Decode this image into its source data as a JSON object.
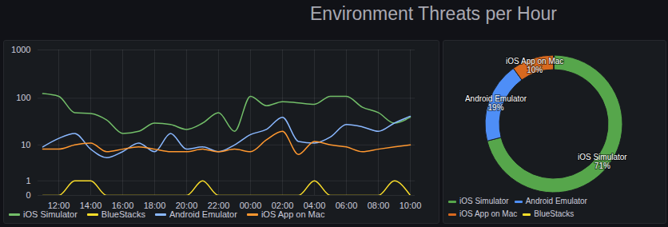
{
  "title": "Environment Threats per Hour",
  "chart_data": [
    {
      "type": "line",
      "categories": [
        null,
        "12:00",
        null,
        "14:00",
        null,
        "16:00",
        null,
        "18:00",
        null,
        "20:00",
        null,
        "22:00",
        null,
        "00:00",
        null,
        "02:00",
        null,
        "04:00",
        null,
        "06:00",
        null,
        "08:00",
        null,
        "10:00"
      ],
      "series": [
        {
          "name": "iOS Simulator",
          "color": "#73bf69",
          "values": [
            125,
            110,
            50,
            48,
            35,
            18,
            20,
            30,
            28,
            22,
            30,
            50,
            20,
            110,
            70,
            85,
            80,
            75,
            110,
            110,
            65,
            50,
            30,
            40
          ]
        },
        {
          "name": "BlueStacks",
          "color": "#fade2a",
          "values": [
            0,
            0,
            1,
            1,
            0,
            0,
            0,
            0,
            0,
            0,
            1,
            0,
            0,
            0,
            0,
            0,
            0,
            1,
            0,
            0,
            0,
            0,
            1,
            0
          ]
        },
        {
          "name": "Android Emulator",
          "color": "#8ab8ff",
          "values": [
            9,
            14,
            18,
            8,
            5,
            7,
            11,
            7,
            18,
            8,
            9,
            7,
            10,
            17,
            22,
            40,
            12,
            11,
            15,
            28,
            25,
            20,
            30,
            42
          ]
        },
        {
          "name": "iOS App on Mac",
          "color": "#ff9830",
          "values": [
            8,
            8,
            10,
            11,
            7,
            8,
            9,
            8,
            7,
            7,
            8,
            7,
            8,
            7,
            13,
            20,
            6,
            12,
            10,
            9,
            7,
            8,
            9,
            10
          ]
        }
      ],
      "ylim": [
        0,
        1000
      ],
      "yticks": [
        0,
        1,
        10,
        100,
        1000
      ],
      "log": "y",
      "grid": true,
      "legend": "bottom"
    },
    {
      "type": "donut",
      "categories": [
        "iOS Simulator",
        "Android Emulator",
        "iOS App on Mac",
        "BlueStacks"
      ],
      "values": [
        71,
        19,
        10,
        0
      ],
      "value_labels": [
        "71%",
        "19%",
        "10%",
        null
      ],
      "colors": [
        "#56a64b",
        "#4e8ef7",
        "#d8691f",
        "#fade2a"
      ],
      "data_labels": true,
      "legend": "bottom"
    }
  ]
}
